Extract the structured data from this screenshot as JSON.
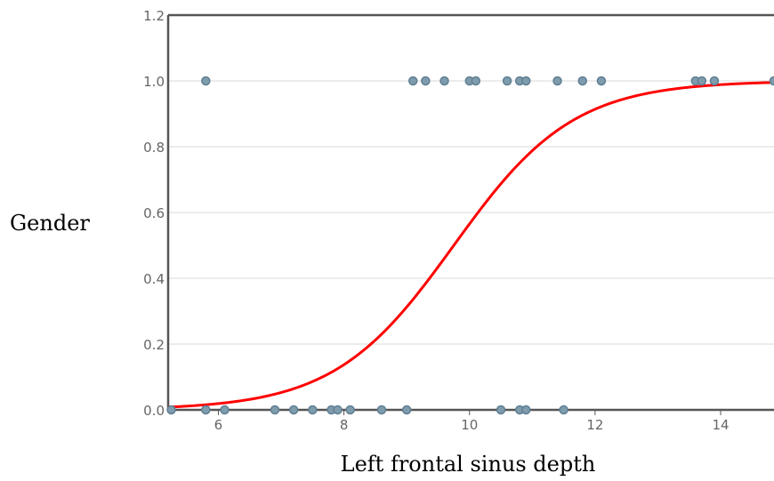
{
  "chart_data": {
    "type": "scatter",
    "title": "",
    "xlabel": "Left frontal sinus depth",
    "ylabel": "Gender",
    "xlim": [
      5.2,
      14.85
    ],
    "ylim": [
      0,
      1.2
    ],
    "x_ticks": [
      6,
      8,
      10,
      12,
      14
    ],
    "y_ticks": [
      0.0,
      0.2,
      0.4,
      0.6,
      0.8,
      1.0,
      1.2
    ],
    "x_tick_labels": [
      "6",
      "8",
      "10",
      "12",
      "14"
    ],
    "y_tick_labels": [
      "0.0",
      "0.2",
      "0.4",
      "0.6",
      "0.8",
      "1.0",
      "1.2"
    ],
    "grid": "horizontal",
    "series": [
      {
        "kind": "points",
        "color": "#7f9cad",
        "points": [
          {
            "x": 5.8,
            "y": 1
          },
          {
            "x": 9.1,
            "y": 1
          },
          {
            "x": 9.3,
            "y": 1
          },
          {
            "x": 9.6,
            "y": 1
          },
          {
            "x": 10.0,
            "y": 1
          },
          {
            "x": 10.1,
            "y": 1
          },
          {
            "x": 10.6,
            "y": 1
          },
          {
            "x": 10.8,
            "y": 1
          },
          {
            "x": 10.9,
            "y": 1
          },
          {
            "x": 11.4,
            "y": 1
          },
          {
            "x": 11.8,
            "y": 1
          },
          {
            "x": 12.1,
            "y": 1
          },
          {
            "x": 13.6,
            "y": 1
          },
          {
            "x": 13.7,
            "y": 1
          },
          {
            "x": 13.9,
            "y": 1
          },
          {
            "x": 14.85,
            "y": 1
          },
          {
            "x": 5.25,
            "y": 0
          },
          {
            "x": 5.8,
            "y": 0
          },
          {
            "x": 6.1,
            "y": 0
          },
          {
            "x": 6.9,
            "y": 0
          },
          {
            "x": 7.2,
            "y": 0
          },
          {
            "x": 7.5,
            "y": 0
          },
          {
            "x": 7.8,
            "y": 0
          },
          {
            "x": 7.9,
            "y": 0
          },
          {
            "x": 8.1,
            "y": 0
          },
          {
            "x": 8.6,
            "y": 0
          },
          {
            "x": 9.0,
            "y": 0
          },
          {
            "x": 10.5,
            "y": 0
          },
          {
            "x": 10.8,
            "y": 0
          },
          {
            "x": 10.9,
            "y": 0
          },
          {
            "x": 11.5,
            "y": 0
          }
        ]
      },
      {
        "kind": "curve",
        "color": "#ff0000",
        "model": "logistic",
        "midpoint": 9.75,
        "slope": 1.05
      }
    ]
  }
}
